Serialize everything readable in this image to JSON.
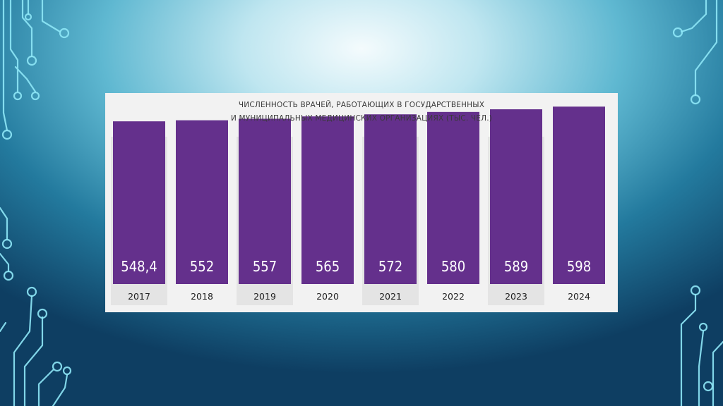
{
  "slide": {
    "colors": {
      "bar": "#64308c",
      "card": "#f2f2f2",
      "stripe": "#e4e4e4",
      "circuit": "#8ee7f7"
    }
  },
  "chart_data": {
    "type": "bar",
    "title_lines": [
      "ЧИСЛЕННОСТЬ ВРАЧЕЙ, РАБОТАЮЩИХ В ГОСУДАРСТВЕННЫХ",
      "И МУНИЦИПАЛЬНЫХ МЕДИЦИНСКИХ ОРГАНИЗАЦИЯХ (ТЫС. ЧЕЛ.)"
    ],
    "categories": [
      "2017",
      "2018",
      "2019",
      "2020",
      "2021",
      "2022",
      "2023",
      "2024"
    ],
    "values": [
      548.4,
      552,
      557,
      565,
      572,
      580,
      589,
      598
    ],
    "value_labels": [
      "548,4",
      "552",
      "557",
      "565",
      "572",
      "580",
      "589",
      "598"
    ],
    "ylim": [
      0,
      620
    ],
    "grid": false,
    "legend": "none"
  }
}
